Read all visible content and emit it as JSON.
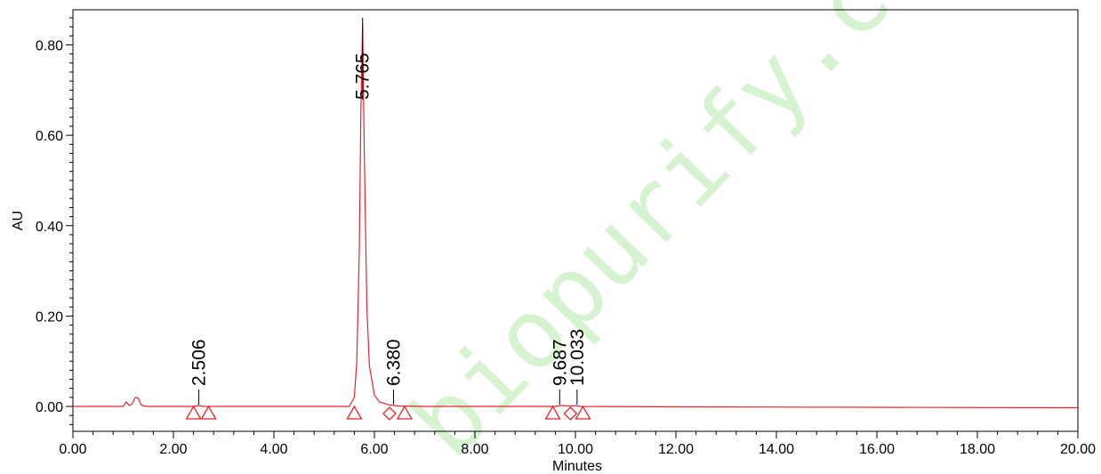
{
  "watermark": "biopurify.com",
  "chart_data": {
    "type": "line",
    "title": "",
    "xlabel": "Minutes",
    "ylabel": "AU",
    "xlim": [
      0,
      20
    ],
    "ylim": [
      -0.04,
      0.86
    ],
    "x_ticks": [
      "0.00",
      "2.00",
      "4.00",
      "6.00",
      "8.00",
      "10.00",
      "12.00",
      "14.00",
      "16.00",
      "18.00",
      "20.00"
    ],
    "y_ticks": [
      "0.00",
      "0.20",
      "0.40",
      "0.60",
      "0.80"
    ],
    "series": [
      {
        "color": "#e8242a",
        "x": [
          0,
          1.0,
          1.06,
          1.12,
          1.18,
          1.24,
          1.3,
          1.36,
          1.42,
          1.5,
          2.4,
          2.5,
          2.6,
          5.5,
          5.6,
          5.65,
          5.7,
          5.73,
          5.765,
          5.8,
          5.85,
          5.9,
          6.0,
          6.1,
          6.3,
          6.5,
          7.0,
          9.6,
          9.7,
          9.9,
          10.0,
          10.1,
          12.0,
          16.0,
          20.0
        ],
        "y": [
          0,
          0,
          0.01,
          0.002,
          0.006,
          0.02,
          0.018,
          0.003,
          0.001,
          0,
          0,
          0.002,
          0,
          0,
          0.02,
          0.1,
          0.35,
          0.65,
          0.845,
          0.55,
          0.22,
          0.09,
          0.025,
          0.01,
          0.003,
          0.001,
          0,
          0,
          0.002,
          0.001,
          0.002,
          0,
          -0.001,
          -0.002,
          -0.003
        ]
      }
    ],
    "peak_labels": [
      {
        "label": "2.506",
        "x": 2.506,
        "y": 0.0
      },
      {
        "label": "5.765",
        "x": 5.765,
        "y": 0.845
      },
      {
        "label": "6.380",
        "x": 6.38,
        "y": 0.0
      },
      {
        "label": "9.687",
        "x": 9.687,
        "y": 0.0
      },
      {
        "label": "10.033",
        "x": 10.033,
        "y": 0.0
      }
    ],
    "integration_markers": [
      {
        "shape": "triangle",
        "x": 2.4
      },
      {
        "shape": "triangle",
        "x": 2.7
      },
      {
        "shape": "triangle",
        "x": 5.6
      },
      {
        "shape": "diamond",
        "x": 6.3
      },
      {
        "shape": "triangle",
        "x": 6.6
      },
      {
        "shape": "triangle",
        "x": 9.55
      },
      {
        "shape": "diamond",
        "x": 9.9
      },
      {
        "shape": "triangle",
        "x": 10.15
      }
    ]
  }
}
